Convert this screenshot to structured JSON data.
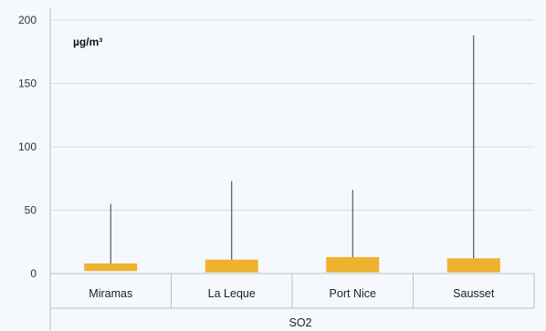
{
  "chart_data": {
    "type": "box",
    "categories": [
      "Miramas",
      "La Leque",
      "Port Nice",
      "Sausset"
    ],
    "series": [
      {
        "category": "Miramas",
        "min": 2,
        "q1": 2,
        "q3": 8,
        "max": 55
      },
      {
        "category": "La Leque",
        "min": 1,
        "q1": 1,
        "q3": 11,
        "max": 73
      },
      {
        "category": "Port Nice",
        "min": 1,
        "q1": 1,
        "q3": 13,
        "max": 66
      },
      {
        "category": "Sausset",
        "min": 1,
        "q1": 1,
        "q3": 12,
        "max": 188
      }
    ],
    "ylim": [
      0,
      200
    ],
    "yticks": [
      "0",
      "50",
      "100",
      "150",
      "200"
    ],
    "ytick_values": [
      0,
      50,
      100,
      150,
      200
    ],
    "unit": "µg/m³",
    "group_label": "SO2",
    "grid": true,
    "colors": {
      "box": "#efb22f",
      "whisker": "#3a3a3a",
      "grid": "#d9d9d9",
      "axis": "#bfbfbf"
    }
  }
}
